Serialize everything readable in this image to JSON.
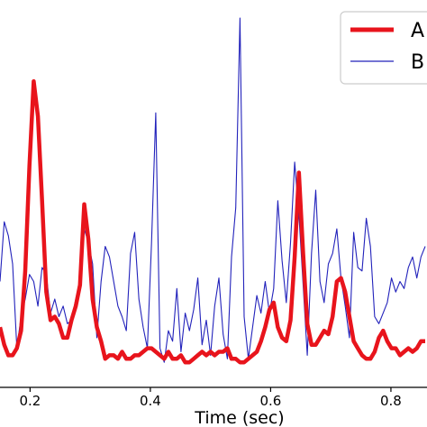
{
  "chart_data": {
    "type": "line",
    "xlabel": "Time (sec)",
    "ylabel": "",
    "title": "",
    "xlim": [
      0.15,
      0.86
    ],
    "ylim": [
      0,
      1
    ],
    "xticks": [
      {
        "value": 0.2,
        "label": "0.2"
      },
      {
        "value": 0.4,
        "label": "0.4"
      },
      {
        "value": 0.6,
        "label": "0.6"
      },
      {
        "value": 0.8,
        "label": "0.8"
      }
    ],
    "legend": "top-right",
    "grid": false,
    "series": [
      {
        "name": "A",
        "color": "#e8141c",
        "x": [
          0.15,
          0.157,
          0.164,
          0.171,
          0.178,
          0.185,
          0.192,
          0.199,
          0.206,
          0.213,
          0.22,
          0.227,
          0.234,
          0.241,
          0.248,
          0.255,
          0.262,
          0.269,
          0.276,
          0.283,
          0.29,
          0.297,
          0.304,
          0.311,
          0.318,
          0.325,
          0.332,
          0.339,
          0.346,
          0.353,
          0.36,
          0.367,
          0.374,
          0.381,
          0.388,
          0.395,
          0.402,
          0.409,
          0.416,
          0.423,
          0.43,
          0.437,
          0.444,
          0.451,
          0.458,
          0.465,
          0.472,
          0.479,
          0.486,
          0.493,
          0.5,
          0.507,
          0.514,
          0.521,
          0.528,
          0.535,
          0.542,
          0.549,
          0.556,
          0.563,
          0.57,
          0.577,
          0.584,
          0.591,
          0.598,
          0.605,
          0.612,
          0.619,
          0.626,
          0.633,
          0.64,
          0.647,
          0.654,
          0.661,
          0.668,
          0.675,
          0.682,
          0.689,
          0.696,
          0.703,
          0.71,
          0.717,
          0.724,
          0.731,
          0.738,
          0.745,
          0.752,
          0.759,
          0.766,
          0.773,
          0.78,
          0.787,
          0.794,
          0.801,
          0.808,
          0.815,
          0.822,
          0.829,
          0.836,
          0.843,
          0.85,
          0.857
        ],
        "y": [
          0.12,
          0.07,
          0.04,
          0.04,
          0.06,
          0.11,
          0.28,
          0.58,
          0.82,
          0.72,
          0.48,
          0.22,
          0.14,
          0.15,
          0.13,
          0.09,
          0.09,
          0.14,
          0.18,
          0.24,
          0.47,
          0.37,
          0.2,
          0.12,
          0.08,
          0.03,
          0.04,
          0.04,
          0.03,
          0.05,
          0.03,
          0.03,
          0.04,
          0.04,
          0.05,
          0.06,
          0.06,
          0.05,
          0.04,
          0.03,
          0.05,
          0.03,
          0.03,
          0.04,
          0.02,
          0.02,
          0.03,
          0.04,
          0.05,
          0.04,
          0.05,
          0.04,
          0.05,
          0.05,
          0.06,
          0.03,
          0.03,
          0.02,
          0.02,
          0.03,
          0.04,
          0.05,
          0.08,
          0.12,
          0.17,
          0.19,
          0.12,
          0.09,
          0.08,
          0.14,
          0.32,
          0.56,
          0.33,
          0.13,
          0.07,
          0.07,
          0.09,
          0.11,
          0.1,
          0.15,
          0.25,
          0.26,
          0.22,
          0.15,
          0.08,
          0.06,
          0.04,
          0.03,
          0.03,
          0.05,
          0.09,
          0.11,
          0.08,
          0.06,
          0.06,
          0.04,
          0.05,
          0.06,
          0.05,
          0.06,
          0.08,
          0.08
        ]
      },
      {
        "name": "B",
        "color": "#2222bb",
        "x": [
          0.15,
          0.157,
          0.164,
          0.171,
          0.178,
          0.185,
          0.192,
          0.199,
          0.206,
          0.213,
          0.22,
          0.227,
          0.234,
          0.241,
          0.248,
          0.255,
          0.262,
          0.269,
          0.276,
          0.283,
          0.29,
          0.297,
          0.304,
          0.311,
          0.318,
          0.325,
          0.332,
          0.339,
          0.346,
          0.353,
          0.36,
          0.367,
          0.374,
          0.381,
          0.388,
          0.395,
          0.402,
          0.409,
          0.416,
          0.423,
          0.43,
          0.437,
          0.444,
          0.451,
          0.458,
          0.465,
          0.472,
          0.479,
          0.486,
          0.493,
          0.5,
          0.507,
          0.514,
          0.521,
          0.528,
          0.535,
          0.542,
          0.549,
          0.556,
          0.563,
          0.57,
          0.577,
          0.584,
          0.591,
          0.598,
          0.605,
          0.612,
          0.619,
          0.626,
          0.633,
          0.64,
          0.647,
          0.654,
          0.661,
          0.668,
          0.675,
          0.682,
          0.689,
          0.696,
          0.703,
          0.71,
          0.717,
          0.724,
          0.731,
          0.738,
          0.745,
          0.752,
          0.759,
          0.766,
          0.773,
          0.78,
          0.787,
          0.794,
          0.801,
          0.808,
          0.815,
          0.822,
          0.829,
          0.836,
          0.843,
          0.85,
          0.857
        ],
        "y": [
          0.25,
          0.42,
          0.38,
          0.3,
          0.06,
          0.15,
          0.2,
          0.27,
          0.25,
          0.18,
          0.29,
          0.27,
          0.16,
          0.2,
          0.15,
          0.18,
          0.13,
          0.14,
          0.2,
          0.25,
          0.4,
          0.36,
          0.3,
          0.09,
          0.25,
          0.35,
          0.32,
          0.25,
          0.18,
          0.15,
          0.11,
          0.33,
          0.39,
          0.2,
          0.12,
          0.06,
          0.36,
          0.73,
          0.06,
          0.02,
          0.11,
          0.08,
          0.23,
          0.05,
          0.16,
          0.11,
          0.17,
          0.26,
          0.07,
          0.14,
          0.04,
          0.18,
          0.26,
          0.1,
          0.03,
          0.32,
          0.46,
          1.0,
          0.15,
          0.03,
          0.12,
          0.21,
          0.16,
          0.25,
          0.16,
          0.23,
          0.48,
          0.31,
          0.19,
          0.36,
          0.59,
          0.44,
          0.24,
          0.04,
          0.33,
          0.51,
          0.25,
          0.19,
          0.3,
          0.33,
          0.4,
          0.26,
          0.18,
          0.09,
          0.39,
          0.29,
          0.28,
          0.43,
          0.35,
          0.15,
          0.13,
          0.16,
          0.19,
          0.26,
          0.22,
          0.25,
          0.23,
          0.29,
          0.32,
          0.26,
          0.32,
          0.35
        ]
      }
    ]
  }
}
